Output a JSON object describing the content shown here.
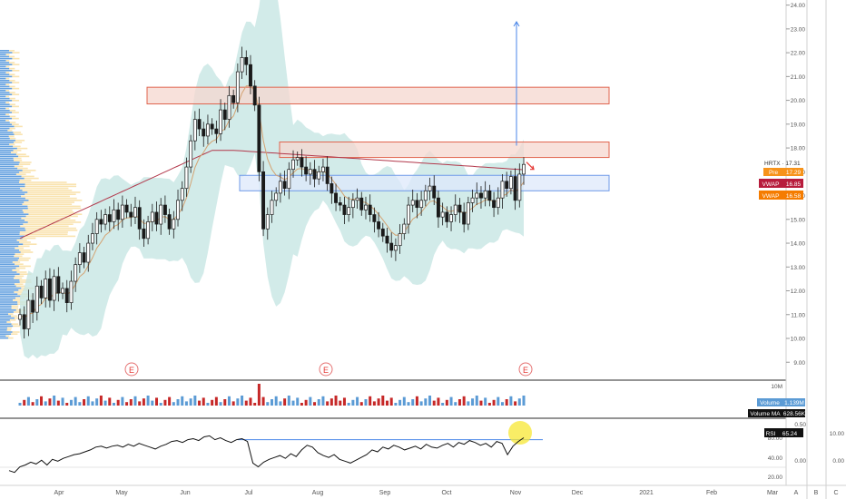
{
  "symbol": "HRTX",
  "last_label": "HRTX · 17.31",
  "colors": {
    "up": "#26a69a",
    "down": "#b71c1c",
    "candle_body": "#1a1a1a",
    "bb_fill": "#c7e6e3",
    "ema": "#d4a373",
    "ma200": "#b2384b",
    "volume_up": "#5b9bd5",
    "volume_down": "#c62828",
    "resistance_fill": "#f6d7cf",
    "resistance_stroke": "#e0654f",
    "support_fill": "#dde8fb",
    "support_stroke": "#6f9ae8",
    "arrow_target": "#4a86e8",
    "arrow_small": "#e53935",
    "badge_pre": "#f7931a",
    "badge_vwap1": "#b71c3c",
    "badge_vwap2": "#f57c00",
    "highlight": "#f7e733"
  },
  "price_axis": {
    "ticks": [
      "24.00",
      "23.00",
      "22.00",
      "21.00",
      "20.00",
      "19.00",
      "18.00",
      "17.00",
      "16.00",
      "15.00",
      "14.00",
      "13.00",
      "12.00",
      "11.00",
      "10.00",
      "9.00"
    ],
    "badges": [
      {
        "label": "Pre",
        "value": "17.29"
      },
      {
        "label": "VWAP",
        "value": "16.85"
      },
      {
        "label": "VWAP",
        "value": "16.58"
      }
    ]
  },
  "earnings_markers": [
    "E",
    "E",
    "E"
  ],
  "volume_pane": {
    "axis_label": "10M",
    "volume_label": "Volume",
    "volume_value": "1.139M",
    "ma_label": "Volume MA",
    "ma_value": "628.56K"
  },
  "rsi_pane": {
    "label": "RSI",
    "value": "65.24",
    "ticks": [
      "80.00",
      "40.00",
      "20.00"
    ],
    "second_axis": [
      "0.50",
      "0.00"
    ],
    "third_axis": [
      "10.00",
      "0.00"
    ]
  },
  "time_axis": [
    "Apr",
    "May",
    "Jun",
    "Jul",
    "Aug",
    "Sep",
    "Oct",
    "Nov",
    "Dec",
    "2021",
    "Feb",
    "Mar"
  ],
  "side_columns": [
    "A",
    "B",
    "C"
  ],
  "chart_data": {
    "type": "candlestick",
    "y_range": [
      8.4,
      24.1
    ],
    "resistance_zones": [
      {
        "from": 19.85,
        "to": 20.55
      },
      {
        "from": 17.6,
        "to": 18.25
      }
    ],
    "support_zones": [
      {
        "from": 16.2,
        "to": 16.85
      }
    ],
    "target_arrow": {
      "from": 18.1,
      "to": 23.3
    },
    "rsi_trendline": 63,
    "closes": [
      11.0,
      10.4,
      11.6,
      11.1,
      12.2,
      11.7,
      12.5,
      11.6,
      12.6,
      11.9,
      12.1,
      11.5,
      12.4,
      13.1,
      13.6,
      13.2,
      14.0,
      14.4,
      15.0,
      14.8,
      15.2,
      14.9,
      15.4,
      15.0,
      15.6,
      15.3,
      15.1,
      15.5,
      14.6,
      14.2,
      14.9,
      15.3,
      14.8,
      15.6,
      15.2,
      14.6,
      15.0,
      15.8,
      16.3,
      17.2,
      18.3,
      19.2,
      18.8,
      18.5,
      19.0,
      18.8,
      18.6,
      19.6,
      19.2,
      20.2,
      19.9,
      21.2,
      21.8,
      21.5,
      20.6,
      19.8,
      17.0,
      14.6,
      15.2,
      15.8,
      16.1,
      16.6,
      16.3,
      17.1,
      17.5,
      17.6,
      17.2,
      16.9,
      17.1,
      16.7,
      17.0,
      17.2,
      16.5,
      16.1,
      15.7,
      15.6,
      15.2,
      15.5,
      15.8,
      15.9,
      15.4,
      15.6,
      15.2,
      14.9,
      14.6,
      14.3,
      14.0,
      13.7,
      13.9,
      14.4,
      14.8,
      15.6,
      15.8,
      15.5,
      15.8,
      16.2,
      16.4,
      15.9,
      15.1,
      15.3,
      14.9,
      15.2,
      15.6,
      15.3,
      14.8,
      15.7,
      15.9,
      16.1,
      15.9,
      16.2,
      15.8,
      15.5,
      15.9,
      16.6,
      16.3,
      16.8,
      15.8,
      16.9,
      17.31
    ],
    "volume_spike_index": 56,
    "rsi_values": [
      30,
      28,
      34,
      36,
      39,
      37,
      41,
      36,
      42,
      40,
      43,
      45,
      47,
      48,
      50,
      52,
      55,
      56,
      54,
      56,
      57,
      55,
      58,
      56,
      59,
      57,
      55,
      53,
      56,
      58,
      61,
      62,
      60,
      63,
      64,
      62,
      66,
      67,
      63,
      65,
      62,
      60,
      63,
      64,
      61,
      38,
      34,
      39,
      42,
      44,
      46,
      43,
      48,
      45,
      52,
      57,
      55,
      49,
      46,
      44,
      47,
      42,
      40,
      38,
      41,
      44,
      47,
      52,
      50,
      55,
      53,
      57,
      55,
      52,
      54,
      56,
      53,
      58,
      55,
      54,
      57,
      59,
      55,
      60,
      58,
      62,
      60,
      57,
      59,
      55,
      61,
      59,
      47,
      56,
      61,
      65
    ]
  }
}
